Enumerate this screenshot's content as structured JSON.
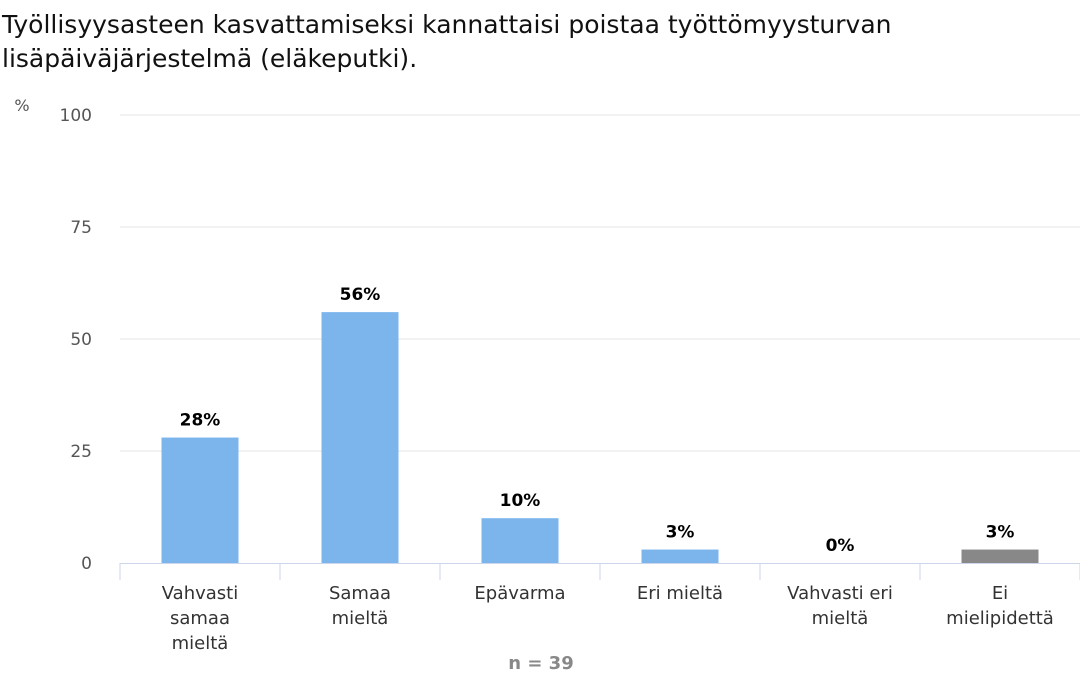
{
  "chart_data": {
    "type": "bar",
    "title": "Työllisyysasteen kasvattamiseksi kannattaisi poistaa työttömyysturvan lisäpäiväjärjestelmä (eläkeputki).",
    "ylabel": "%",
    "ylim": [
      0,
      100
    ],
    "yticks": [
      0,
      25,
      50,
      75,
      100
    ],
    "grid": true,
    "categories": [
      [
        "Vahvasti",
        "samaa",
        "mieltä"
      ],
      [
        "Samaa",
        "mieltä"
      ],
      [
        "Epävarma"
      ],
      [
        "Eri mieltä"
      ],
      [
        "Vahvasti eri",
        "mieltä"
      ],
      [
        "Ei",
        "mielipidettä"
      ]
    ],
    "values": [
      28,
      56,
      10,
      3,
      0,
      3
    ],
    "data_labels": [
      "28%",
      "56%",
      "10%",
      "3%",
      "0%",
      "3%"
    ],
    "bar_colors": [
      "#7cb5ec",
      "#7cb5ec",
      "#7cb5ec",
      "#7cb5ec",
      "#7cb5ec",
      "#888888"
    ],
    "footer": "n = 39"
  }
}
